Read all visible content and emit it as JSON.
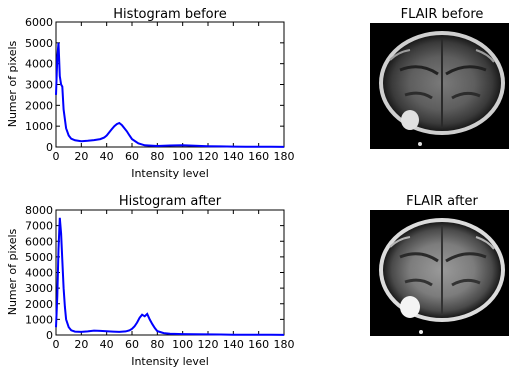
{
  "chart_data": [
    {
      "type": "line",
      "title": "Histogram before",
      "xlabel": "Intensity level",
      "ylabel": "Numer of pixels",
      "xlim": [
        0,
        180
      ],
      "ylim": [
        0,
        6000
      ],
      "xticks": [
        0,
        20,
        40,
        60,
        80,
        100,
        120,
        140,
        160,
        180
      ],
      "yticks": [
        0,
        1000,
        2000,
        3000,
        4000,
        5000,
        6000
      ],
      "grid": false,
      "line_color": "#0000ff",
      "x": [
        0,
        1,
        2,
        3,
        4,
        5,
        6,
        8,
        10,
        12,
        15,
        20,
        25,
        30,
        35,
        38,
        40,
        42,
        44,
        46,
        48,
        50,
        52,
        54,
        56,
        58,
        60,
        65,
        70,
        80,
        90,
        100,
        110,
        120,
        130,
        140,
        150,
        160,
        170,
        180
      ],
      "y": [
        2500,
        4300,
        5000,
        3400,
        3000,
        2900,
        1800,
        900,
        550,
        400,
        320,
        280,
        300,
        330,
        380,
        450,
        550,
        700,
        850,
        1000,
        1100,
        1150,
        1050,
        900,
        750,
        550,
        380,
        180,
        80,
        50,
        70,
        80,
        60,
        40,
        30,
        20,
        15,
        10,
        10,
        5
      ]
    },
    {
      "type": "line",
      "title": "Histogram after",
      "xlabel": "Intensity level",
      "ylabel": "Numer of pixels",
      "xlim": [
        0,
        180
      ],
      "ylim": [
        0,
        8000
      ],
      "xticks": [
        0,
        20,
        40,
        60,
        80,
        100,
        120,
        140,
        160,
        180
      ],
      "yticks": [
        0,
        1000,
        2000,
        3000,
        4000,
        5000,
        6000,
        7000,
        8000
      ],
      "grid": false,
      "line_color": "#0000ff",
      "x": [
        0,
        1,
        2,
        3,
        4,
        5,
        6,
        7,
        8,
        10,
        12,
        15,
        20,
        25,
        30,
        35,
        40,
        45,
        50,
        55,
        58,
        60,
        62,
        64,
        66,
        68,
        70,
        72,
        74,
        76,
        78,
        80,
        85,
        90,
        100,
        110,
        120,
        130,
        140,
        150,
        160,
        170,
        180
      ],
      "y": [
        500,
        2500,
        5500,
        7500,
        6500,
        4800,
        3000,
        1800,
        1000,
        500,
        300,
        220,
        200,
        230,
        280,
        260,
        240,
        220,
        200,
        230,
        300,
        400,
        550,
        800,
        1100,
        1300,
        1200,
        1350,
        1000,
        700,
        450,
        250,
        120,
        80,
        60,
        50,
        40,
        30,
        20,
        15,
        10,
        10,
        5
      ]
    }
  ],
  "images": [
    {
      "title": "FLAIR before",
      "type": "brain MRI axial slice"
    },
    {
      "title": "FLAIR after",
      "type": "brain MRI axial slice"
    }
  ]
}
